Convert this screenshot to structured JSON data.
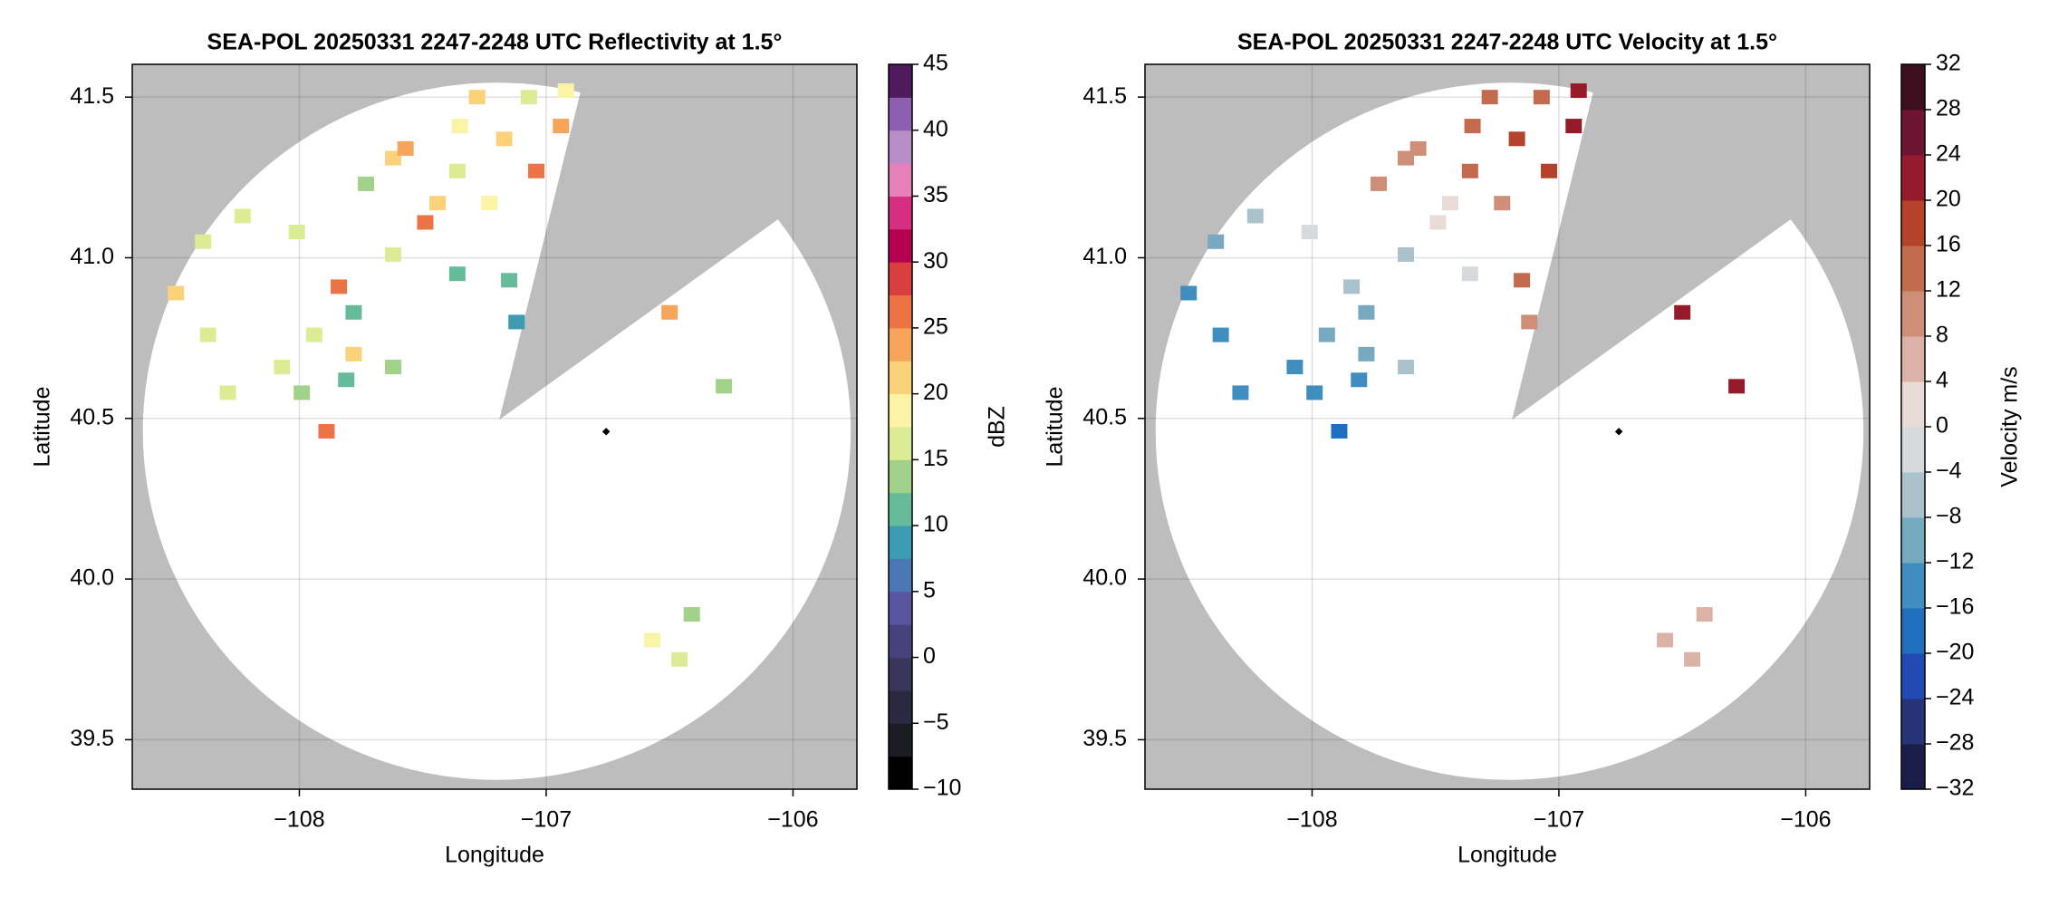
{
  "chart_data": [
    {
      "type": "scatter",
      "title": "SEA-POL 20250331 2247-2248 UTC Reflectivity at 1.5°",
      "xlabel": "Longitude",
      "ylabel": "Latitude",
      "xlim": [
        -108.677,
        -105.741
      ],
      "ylim": [
        39.346,
        41.602
      ],
      "xticks": [
        {
          "value": -108,
          "label": "−108"
        },
        {
          "value": -107,
          "label": "−107"
        },
        {
          "value": -106,
          "label": "−106"
        }
      ],
      "yticks": [
        39.5,
        {
          "value": 40,
          "label": "40.0"
        },
        40.5,
        {
          "value": 41,
          "label": "41.0"
        },
        41.5
      ],
      "grid": true,
      "x": [
        -107.28,
        -107.35,
        -106.94,
        -107.62,
        -107.57,
        -107.44,
        -107.49,
        -107.23,
        -107.04,
        -107.36,
        -107.73,
        -107.62,
        -107.84,
        -107.78,
        -107.94,
        -107.78,
        -107.81,
        -108.07,
        -107.99,
        -107.89,
        -108.29,
        -108.37,
        -108.5,
        -108.39,
        -108.01,
        -108.23,
        -107.62,
        -107.36,
        -107.15,
        -107.12,
        -106.5,
        -106.28,
        -106.57,
        -106.41,
        -106.46,
        -107.17,
        -107.07,
        -106.92
      ],
      "y": [
        41.5,
        41.41,
        41.41,
        41.31,
        41.34,
        41.17,
        41.11,
        41.17,
        41.27,
        41.27,
        41.23,
        41.01,
        40.91,
        40.83,
        40.76,
        40.7,
        40.62,
        40.66,
        40.58,
        40.46,
        40.58,
        40.76,
        40.89,
        41.05,
        41.08,
        41.13,
        40.66,
        40.95,
        40.93,
        40.8,
        40.83,
        40.6,
        39.81,
        39.89,
        39.75,
        41.37,
        41.5,
        41.52
      ],
      "values": [
        22,
        18,
        24,
        20,
        24,
        22,
        26,
        18,
        25,
        16,
        14,
        15,
        26,
        12,
        16,
        22,
        10,
        15,
        14,
        26,
        16,
        16,
        22,
        16,
        16,
        17,
        14,
        10,
        12,
        8,
        24,
        14,
        18,
        14,
        16,
        20,
        16,
        18
      ],
      "colorbar": {
        "label": "dBZ",
        "lim": [
          -10,
          45
        ],
        "ticks": [
          {
            "value": -10,
            "label": "−10"
          },
          {
            "value": -5,
            "label": "−5"
          },
          0,
          5,
          10,
          15,
          20,
          25,
          30,
          35,
          40,
          45
        ],
        "colors": [
          "#000000",
          "#1c1c24",
          "#2b2940",
          "#3a355c",
          "#48427c",
          "#5a55a0",
          "#4a78b5",
          "#3b9cb2",
          "#66bc9a",
          "#a2d189",
          "#dbec95",
          "#fbf4a6",
          "#fad27a",
          "#f6a55a",
          "#ec7444",
          "#d93f40",
          "#b5004f",
          "#d5307f",
          "#e781b9",
          "#b98dc8",
          "#8e5fae",
          "#4f1a5e"
        ]
      }
    },
    {
      "type": "scatter",
      "title": "SEA-POL 20250331 2247-2248 UTC Velocity at 1.5°",
      "xlabel": "Longitude",
      "ylabel": "Latitude",
      "xlim": [
        -108.677,
        -105.741
      ],
      "ylim": [
        39.346,
        41.602
      ],
      "xticks": [
        {
          "value": -108,
          "label": "−108"
        },
        {
          "value": -107,
          "label": "−107"
        },
        {
          "value": -106,
          "label": "−106"
        }
      ],
      "yticks": [
        39.5,
        {
          "value": 40,
          "label": "40.0"
        },
        40.5,
        {
          "value": 41,
          "label": "41.0"
        },
        41.5
      ],
      "grid": true,
      "x": [
        -107.28,
        -107.35,
        -106.94,
        -107.62,
        -107.57,
        -107.44,
        -107.49,
        -107.23,
        -107.04,
        -107.36,
        -107.73,
        -107.62,
        -107.84,
        -107.78,
        -107.94,
        -107.78,
        -107.81,
        -108.07,
        -107.99,
        -107.89,
        -108.29,
        -108.37,
        -108.5,
        -108.39,
        -108.01,
        -108.23,
        -107.62,
        -107.36,
        -107.15,
        -107.12,
        -106.5,
        -106.28,
        -106.57,
        -106.41,
        -106.46,
        -107.17,
        -107.07,
        -106.92
      ],
      "y": [
        41.5,
        41.41,
        41.41,
        41.31,
        41.34,
        41.17,
        41.11,
        41.17,
        41.27,
        41.27,
        41.23,
        41.01,
        40.91,
        40.83,
        40.76,
        40.7,
        40.62,
        40.66,
        40.58,
        40.46,
        40.58,
        40.76,
        40.89,
        41.05,
        41.08,
        41.13,
        40.66,
        40.95,
        40.93,
        40.8,
        40.83,
        40.6,
        39.81,
        39.89,
        39.75,
        41.37,
        41.5,
        41.52
      ],
      "values": [
        14,
        12,
        22,
        10,
        10,
        2,
        2,
        10,
        18,
        14,
        10,
        -6,
        -6,
        -10,
        -12,
        -12,
        -14,
        -14,
        -16,
        -18,
        -14,
        -16,
        -14,
        -10,
        -4,
        -6,
        -8,
        -2,
        12,
        10,
        22,
        22,
        4,
        6,
        4,
        16,
        14,
        22
      ],
      "colorbar": {
        "label": "Velocity m/s",
        "lim": [
          -32,
          32
        ],
        "ticks": [
          {
            "value": -32,
            "label": "−32"
          },
          {
            "value": -28,
            "label": "−28"
          },
          {
            "value": -24,
            "label": "−24"
          },
          {
            "value": -20,
            "label": "−20"
          },
          {
            "value": -16,
            "label": "−16"
          },
          {
            "value": -12,
            "label": "−12"
          },
          {
            "value": -8,
            "label": "−8"
          },
          {
            "value": -4,
            "label": "−4"
          },
          0,
          4,
          8,
          12,
          16,
          20,
          24,
          28,
          32
        ],
        "colors": [
          "#1a1d45",
          "#253477",
          "#2349b2",
          "#1f6fc0",
          "#3f8ebf",
          "#77a9c0",
          "#aac2cc",
          "#d6dadd",
          "#e8dbd8",
          "#dbb3a6",
          "#cf8e77",
          "#c46a4e",
          "#b5432c",
          "#961b2a",
          "#6e1432",
          "#3d0f1c"
        ]
      }
    }
  ]
}
